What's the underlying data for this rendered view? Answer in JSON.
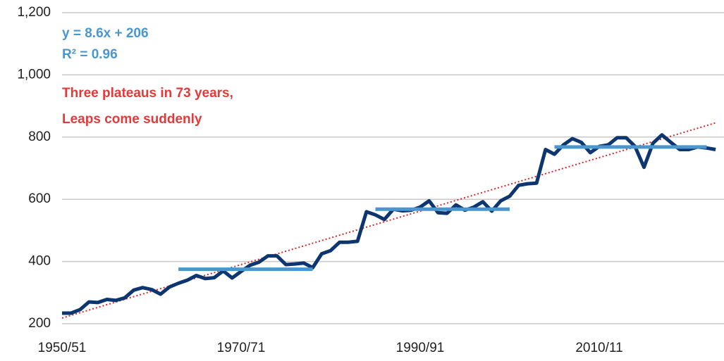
{
  "chart_data": {
    "type": "line",
    "annotations": [
      "y = 8.6x + 206",
      "R² = 0.96",
      "Three plateaus in 73 years,",
      "Leaps come suddenly"
    ],
    "annotation_colors": [
      "#4a96cf",
      "#4a96cf",
      "#e23a3a",
      "#e23a3a"
    ],
    "categories": [
      "1950/51",
      null,
      null,
      null,
      null,
      null,
      null,
      null,
      null,
      null,
      null,
      null,
      null,
      null,
      null,
      null,
      null,
      null,
      null,
      null,
      "1970/71",
      null,
      null,
      null,
      null,
      null,
      null,
      null,
      null,
      null,
      null,
      null,
      null,
      null,
      null,
      null,
      null,
      null,
      null,
      null,
      "1990/91",
      null,
      null,
      null,
      null,
      null,
      null,
      null,
      null,
      null,
      null,
      null,
      null,
      null,
      null,
      null,
      null,
      null,
      null,
      null,
      "2010/11",
      null,
      null,
      null,
      null,
      null,
      null,
      null,
      null,
      null,
      null,
      null,
      null,
      null
    ],
    "series": [
      {
        "color": "#d62828",
        "dotted": true,
        "width": 2,
        "values": [
          218,
          226.6,
          235.2,
          243.8,
          252.4,
          261,
          269.6,
          278.2,
          286.8,
          295.4,
          304,
          312.6,
          321.2,
          329.8,
          338.4,
          347,
          355.6,
          364.2,
          372.8,
          381.4,
          390,
          398.6,
          407.2,
          415.8,
          424.4,
          433,
          441.6,
          450.2,
          458.8,
          467.4,
          476,
          484.6,
          493.2,
          501.8,
          510.4,
          519,
          527.6,
          536.2,
          544.8,
          553.4,
          562,
          570.6,
          579.2,
          587.8,
          596.4,
          605,
          613.6,
          622.2,
          630.8,
          639.4,
          648,
          656.6,
          665.2,
          673.8,
          682.4,
          691,
          699.6,
          708.2,
          716.8,
          725.4,
          734,
          742.6,
          751.2,
          759.8,
          768.4,
          777,
          785.6,
          794.2,
          802.8,
          811.4,
          820,
          828.6,
          837.2,
          845.8
        ]
      },
      {
        "color": "#0d3570",
        "width": 5,
        "values": [
          234,
          234,
          245,
          270,
          268,
          278,
          275,
          283,
          308,
          316,
          310,
          295,
          318,
          330,
          340,
          355,
          345,
          348,
          370,
          347,
          368,
          388,
          398,
          418,
          418,
          390,
          392,
          395,
          380,
          425,
          435,
          462,
          462,
          465,
          560,
          550,
          535,
          568,
          563,
          565,
          575,
          595,
          557,
          555,
          582,
          565,
          575,
          592,
          562,
          595,
          610,
          645,
          650,
          652,
          760,
          745,
          775,
          795,
          783,
          750,
          770,
          775,
          798,
          798,
          770,
          703,
          780,
          807,
          783,
          760,
          760,
          768,
          765,
          760
        ]
      },
      {
        "color": "#4a96cf",
        "width": 5,
        "values": [
          null,
          null,
          null,
          null,
          null,
          null,
          null,
          null,
          null,
          null,
          null,
          null,
          null,
          375,
          375,
          375,
          375,
          375,
          375,
          375,
          375,
          375,
          375,
          375,
          375,
          375,
          375,
          375,
          375,
          null,
          null,
          null,
          null,
          null,
          null,
          null,
          null,
          null,
          null,
          null,
          null,
          null,
          null,
          null,
          null,
          null,
          null,
          null,
          null,
          null,
          null,
          null,
          null,
          null,
          null,
          null,
          null,
          null,
          null,
          null,
          null,
          null,
          null,
          null,
          null,
          null,
          null,
          null,
          null,
          null,
          null,
          null,
          null,
          null
        ]
      },
      {
        "color": "#4a96cf",
        "width": 5,
        "values": [
          null,
          null,
          null,
          null,
          null,
          null,
          null,
          null,
          null,
          null,
          null,
          null,
          null,
          null,
          null,
          null,
          null,
          null,
          null,
          null,
          null,
          null,
          null,
          null,
          null,
          null,
          null,
          null,
          null,
          null,
          null,
          null,
          null,
          null,
          null,
          568,
          568,
          568,
          568,
          568,
          568,
          568,
          568,
          568,
          568,
          568,
          568,
          568,
          568,
          568,
          568,
          null,
          null,
          null,
          null,
          null,
          null,
          null,
          null,
          null,
          null,
          null,
          null,
          null,
          null,
          null,
          null,
          null,
          null,
          null,
          null,
          null,
          null,
          null
        ]
      },
      {
        "color": "#4a96cf",
        "width": 5,
        "values": [
          null,
          null,
          null,
          null,
          null,
          null,
          null,
          null,
          null,
          null,
          null,
          null,
          null,
          null,
          null,
          null,
          null,
          null,
          null,
          null,
          null,
          null,
          null,
          null,
          null,
          null,
          null,
          null,
          null,
          null,
          null,
          null,
          null,
          null,
          null,
          null,
          null,
          null,
          null,
          null,
          null,
          null,
          null,
          null,
          null,
          null,
          null,
          null,
          null,
          null,
          null,
          null,
          null,
          null,
          null,
          768,
          768,
          768,
          768,
          768,
          768,
          768,
          768,
          768,
          768,
          768,
          768,
          768,
          768,
          768,
          768,
          768,
          768,
          null
        ]
      }
    ],
    "ylim": [
      200,
      1200
    ],
    "yticks": [
      200,
      400,
      600,
      800,
      {
        "value": 1000,
        "label": "1,000"
      },
      {
        "value": 1200,
        "label": "1,200"
      }
    ],
    "grid": true
  }
}
